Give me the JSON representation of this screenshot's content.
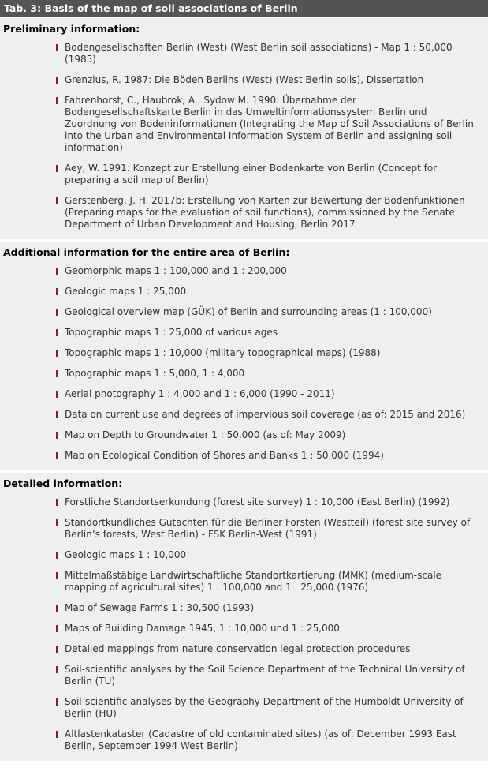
{
  "colors": {
    "header_bg": "#545456",
    "header_text": "#ffffff",
    "section_bg": "#efefef",
    "page_bg": "#ffffff",
    "heading_text": "#000000",
    "body_text": "#333333",
    "bullet": "#8b1a32"
  },
  "table": {
    "title": "Tab. 3: Basis of the map of soil associations of Berlin",
    "sections": [
      {
        "heading": "Preliminary information:",
        "items": [
          "Bodengesellschaften Berlin (West) (West Berlin soil associations) - Map 1 : 50,000 (1985)",
          "Grenzius, R. 1987: Die Böden Berlins (West) (West Berlin soils), Dissertation",
          "Fahrenhorst, C., Haubrok, A., Sydow M. 1990: Übernahme der Bodengesellschaftskarte Berlin in das Umweltinformationssystem Berlin und Zuordnung von Bodeninformationen (Integrating the Map of Soil Associations of Berlin into the Urban and Environmental Information System of Berlin and assigning soil information)",
          "Aey, W. 1991: Konzept zur Erstellung einer Bodenkarte von Berlin (Concept for preparing a soil map of Berlin)",
          "Gerstenberg, J. H. 2017b: Erstellung von Karten zur Bewertung der Bodenfunktionen (Preparing maps for the evaluation of soil functions), commissioned by the Senate Department of Urban Development and Housing, Berlin 2017"
        ]
      },
      {
        "heading": "Additional information for the entire area of Berlin:",
        "items": [
          "Geomorphic maps 1 : 100,000 and 1 : 200,000",
          "Geologic maps 1 : 25,000",
          "Geological overview map (GÜK) of Berlin and surrounding areas (1 : 100,000)",
          "Topographic maps 1 : 25,000 of various ages",
          "Topographic maps 1 : 10,000 (military topographical maps) (1988)",
          "Topographic maps 1 : 5,000, 1 : 4,000",
          "Aerial photography 1 : 4,000 and 1 : 6,000 (1990 - 2011)",
          "Data on current use and degrees of impervious soil coverage (as of: 2015 and 2016)",
          "Map on Depth to Groundwater 1 : 50,000 (as of: May 2009)",
          "Map on Ecological Condition of Shores and Banks 1 : 50,000 (1994)"
        ]
      },
      {
        "heading": "Detailed information:",
        "items": [
          "Forstliche Standortserkundung (forest site survey) 1 : 10,000 (East Berlin) (1992)",
          "Standortkundliches Gutachten für die Berliner Forsten (Westteil) (forest site survey of Berlin’s forests, West Berlin) - FSK Berlin-West (1991)",
          "Geologic maps 1 : 10,000",
          "Mittelmaßstäbige Landwirtschaftliche Standortkartierung (MMK) (medium-scale mapping of agricultural sites) 1 : 100,000 and 1 : 25,000 (1976)",
          "Map of Sewage Farms 1 : 30,500 (1993)",
          "Maps of Building Damage 1945, 1 : 10,000 und 1 : 25,000",
          "Detailed mappings from nature conservation legal protection procedures",
          "Soil-scientific analyses by the Soil Science Department of the Technical University of Berlin (TU)",
          "Soil-scientific analyses by the Geography Department of the Humboldt University of Berlin (HU)",
          "Altlastenkataster (Cadastre of old contaminated sites) (as of: December 1993 East Berlin, September 1994 West Berlin)"
        ]
      }
    ]
  }
}
